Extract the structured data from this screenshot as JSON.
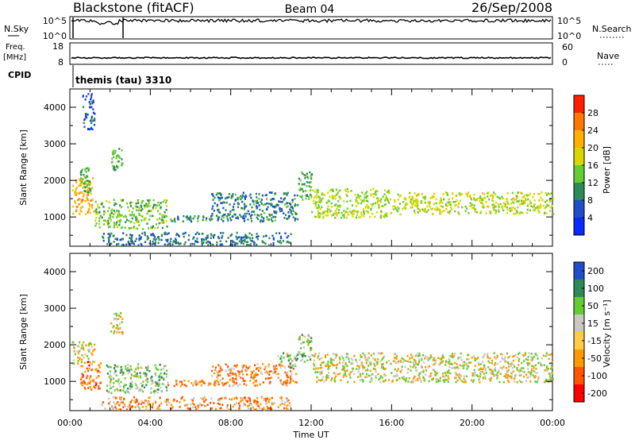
{
  "header": {
    "station": "Blackstone (fitACF)",
    "beam": "Beam 04",
    "date": "26/Sep/2008"
  },
  "nsky_panel": {
    "left_label": "N.Sky",
    "left_ticks": [
      "10^5",
      "10^0"
    ],
    "right_ticks": [
      "10^5",
      "10^0"
    ],
    "right_label": "N.Search"
  },
  "freq_panel": {
    "left_label_1": "Freq.",
    "left_label_2": "[MHz]",
    "left_ticks": [
      "18",
      "8"
    ],
    "right_ticks": [
      "60",
      "0"
    ],
    "right_label": "Nave"
  },
  "cpid_panel": {
    "label": "CPID",
    "program": "themis (tau) 3310"
  },
  "time_axis": {
    "label": "Time UT",
    "ticks": [
      "00:00",
      "04:00",
      "08:00",
      "12:00",
      "16:00",
      "20:00",
      "00:00"
    ]
  },
  "range_axis": {
    "label": "Slant Range [km]",
    "ticks": [
      "1000",
      "2000",
      "3000",
      "4000"
    ],
    "range": [
      200,
      4500
    ]
  },
  "colors": {
    "power_scale": [
      "#0a28ff",
      "#1f4fc8",
      "#2e8b57",
      "#66cc33",
      "#d8d800",
      "#ffb000",
      "#ff7800",
      "#ff2000"
    ],
    "velocity_scale": [
      "#ff0000",
      "#ff5500",
      "#ff9900",
      "#ffcc44",
      "#c8c8c0",
      "#66cc33",
      "#2e8b57",
      "#1f4fc8"
    ]
  },
  "power_colorbar": {
    "label": "Power [dB]",
    "ticks": [
      "4",
      "8",
      "12",
      "16",
      "20",
      "24",
      "28"
    ]
  },
  "velocity_colorbar": {
    "label": "Velocity [m s⁻¹]",
    "ticks": [
      "-200",
      "-100",
      "-50",
      "-15",
      "15",
      "50",
      "100",
      "200"
    ]
  },
  "chart_data": [
    {
      "type": "heatmap",
      "title": "",
      "xlabel": "Time UT",
      "ylabel": "Slant Range [km]",
      "xlim_hours": [
        0,
        24
      ],
      "ylim_km": [
        200,
        4500
      ],
      "colorbar": "Power [dB]",
      "clim": [
        0,
        32
      ],
      "regions": [
        {
          "t0": 0.1,
          "t1": 1.2,
          "r0": 1100,
          "r1": 2100,
          "mean": 22
        },
        {
          "t0": 0.5,
          "t1": 1.0,
          "r0": 1700,
          "r1": 2400,
          "mean": 12
        },
        {
          "t0": 0.6,
          "t1": 1.2,
          "r0": 3400,
          "r1": 4400,
          "mean": 6
        },
        {
          "t0": 1.2,
          "t1": 4.8,
          "r0": 700,
          "r1": 1500,
          "mean": 14
        },
        {
          "t0": 2.0,
          "t1": 2.6,
          "r0": 2300,
          "r1": 2900,
          "mean": 12
        },
        {
          "t0": 4.8,
          "t1": 7.0,
          "r0": 900,
          "r1": 1050,
          "mean": 10
        },
        {
          "t0": 7.0,
          "t1": 11.3,
          "r0": 900,
          "r1": 1700,
          "mean": 9
        },
        {
          "t0": 11.3,
          "t1": 12.0,
          "r0": 1500,
          "r1": 2300,
          "mean": 12
        },
        {
          "t0": 12.0,
          "t1": 16.0,
          "r0": 1000,
          "r1": 1800,
          "mean": 16
        },
        {
          "t0": 16.0,
          "t1": 24.0,
          "r0": 1100,
          "r1": 1700,
          "mean": 17
        },
        {
          "t0": 1.5,
          "t1": 11.0,
          "r0": 250,
          "r1": 600,
          "mean": 8
        }
      ]
    },
    {
      "type": "heatmap",
      "title": "",
      "xlabel": "Time UT",
      "ylabel": "Slant Range [km]",
      "xlim_hours": [
        0,
        24
      ],
      "ylim_km": [
        200,
        4500
      ],
      "colorbar": "Velocity [m s⁻¹]",
      "clim": [
        -200,
        200
      ],
      "regions": [
        {
          "t0": 0.1,
          "t1": 1.2,
          "r0": 1500,
          "r1": 2100,
          "mean": 0
        },
        {
          "t0": 0.5,
          "t1": 1.5,
          "r0": 800,
          "r1": 1600,
          "mean": -60
        },
        {
          "t0": 1.8,
          "t1": 4.8,
          "r0": 700,
          "r1": 1500,
          "mean": 30
        },
        {
          "t0": 2.0,
          "t1": 2.6,
          "r0": 2300,
          "r1": 2900,
          "mean": 0
        },
        {
          "t0": 4.8,
          "t1": 7.0,
          "r0": 900,
          "r1": 1050,
          "mean": -40
        },
        {
          "t0": 7.0,
          "t1": 11.3,
          "r0": 900,
          "r1": 1500,
          "mean": -40
        },
        {
          "t0": 10.3,
          "t1": 11.3,
          "r0": 1400,
          "r1": 1800,
          "mean": 30
        },
        {
          "t0": 11.3,
          "t1": 12.0,
          "r0": 1500,
          "r1": 2300,
          "mean": 20
        },
        {
          "t0": 12.0,
          "t1": 24.0,
          "r0": 1000,
          "r1": 1800,
          "mean": 0
        },
        {
          "t0": 1.5,
          "t1": 11.0,
          "r0": 250,
          "r1": 600,
          "mean": -40
        }
      ]
    }
  ]
}
